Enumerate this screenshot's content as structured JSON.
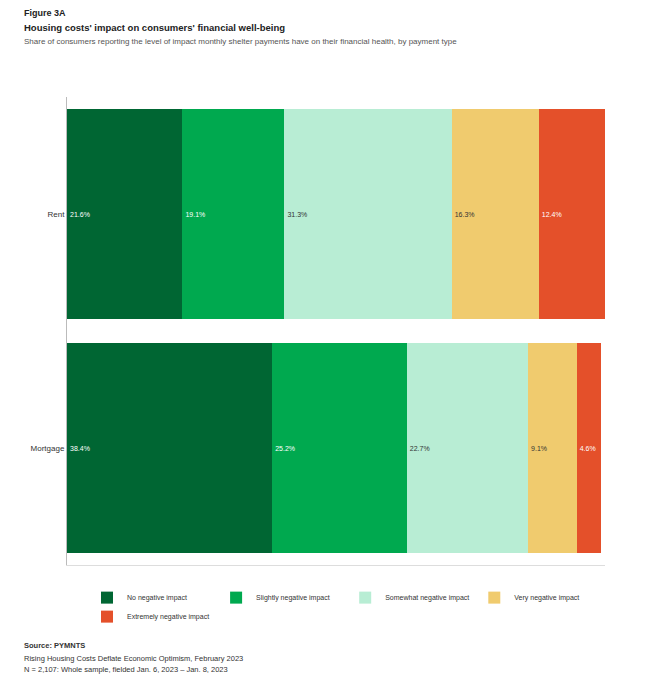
{
  "chart_data": {
    "type": "bar",
    "orientation": "horizontal",
    "stacked": true,
    "data_labels": true,
    "grid": false,
    "legend": "bottom",
    "tick_labels": "y",
    "figure_label": "Figure 3A",
    "title": "Housing costs' impact on consumers' financial well-being",
    "subtitle": "Share of consumers reporting the level of impact monthly shelter payments have on their financial health, by payment type",
    "source": [
      "Source: PYMNTS",
      "Rising Housing Costs Deflate Economic Optimism, February 2023",
      "N = 2,107: Whole sample, fielded Jan. 6, 2023 – Jan. 8, 2023"
    ],
    "categories": [
      "Rent",
      "Mortgage"
    ],
    "xlim": [
      0,
      100.7
    ],
    "xticks": [],
    "series": [
      {
        "name": "No negative impact",
        "color": "#006633",
        "values": [
          21.6,
          38.4
        ],
        "value_labels": [
          "21.6%",
          "38.4%"
        ]
      },
      {
        "name": "Slightly negative impact",
        "color": "#00a94f",
        "values": [
          19.1,
          25.2
        ],
        "value_labels": [
          "19.1%",
          "25.2%"
        ]
      },
      {
        "name": "Somewhat negative impact",
        "color": "#b8edd4",
        "values": [
          31.3,
          22.7
        ],
        "value_labels": [
          "31.3%",
          "22.7%"
        ]
      },
      {
        "name": "Very negative impact",
        "color": "#f0cb6e",
        "values": [
          16.3,
          9.1
        ],
        "value_labels": [
          "16.3%",
          "9.1%"
        ]
      },
      {
        "name": "Extremely negative impact",
        "color": "#e4502a",
        "values": [
          12.4,
          4.6
        ],
        "value_labels": [
          "12.4%",
          "4.6%"
        ]
      }
    ]
  }
}
